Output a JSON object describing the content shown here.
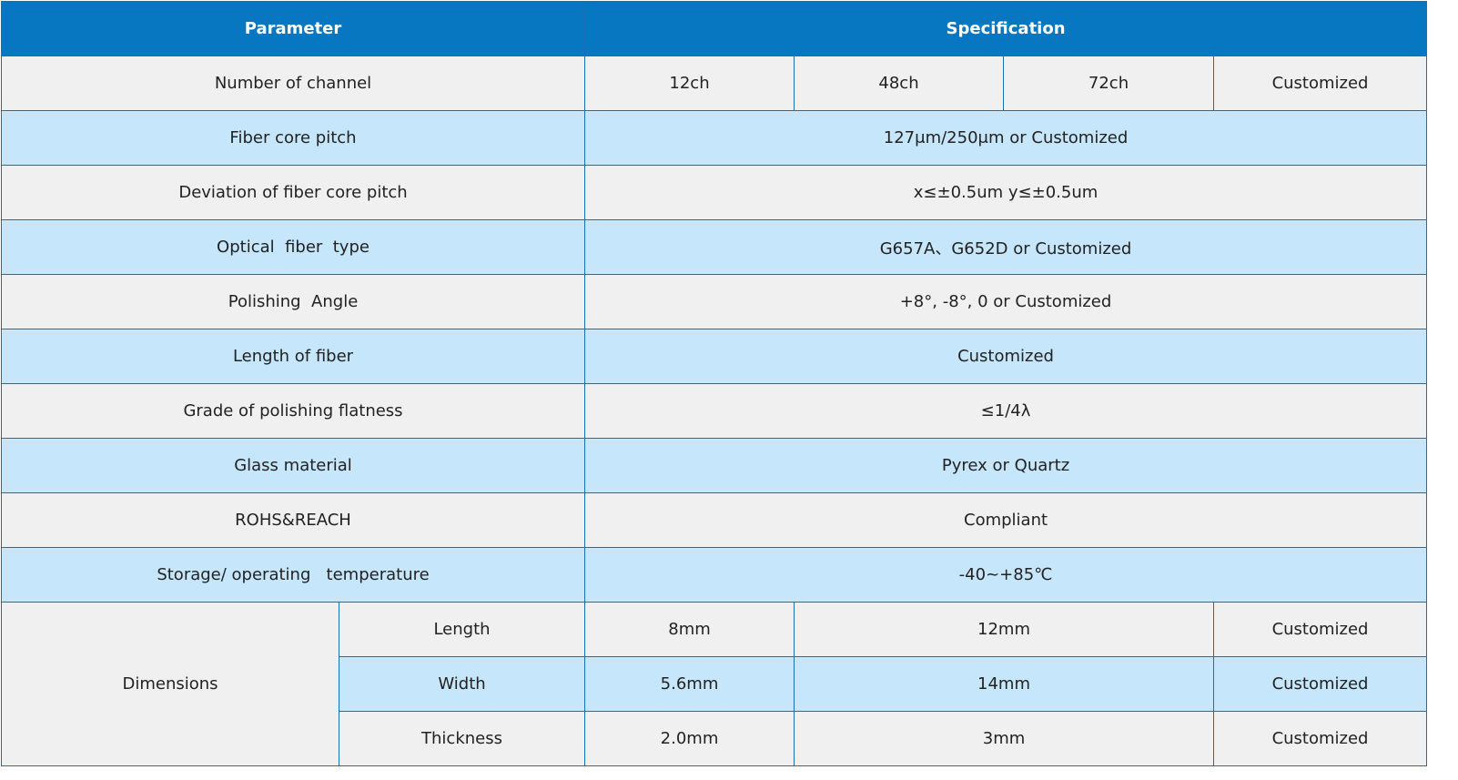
{
  "header": {
    "parameter": "Parameter",
    "specification": "Specification"
  },
  "rows": [
    {
      "param": "Number of channel",
      "values": [
        "12ch",
        "48ch",
        "72ch",
        "Customized"
      ]
    },
    {
      "param": "Fiber core pitch",
      "value": "127μm/250μm or Customized"
    },
    {
      "param": "Deviation of fiber core pitch",
      "value": "x≤±0.5um y≤±0.5um"
    },
    {
      "param": "Optical  fiber  type",
      "value": "G657A、G652D or Customized"
    },
    {
      "param": "Polishing  Angle",
      "value": "+8°, -8°, 0 or Customized"
    },
    {
      "param": "Length of fiber",
      "value": "Customized"
    },
    {
      "param": "Grade of polishing flatness",
      "value": "≤1/4λ"
    },
    {
      "param": "Glass material",
      "value": "Pyrex or Quartz"
    },
    {
      "param": "ROHS&REACH",
      "value": "Compliant"
    },
    {
      "param": "Storage/ operating   temperature",
      "value": "-40~+85℃"
    }
  ],
  "dimensions": {
    "label": "Dimensions",
    "items": [
      {
        "name": "Length",
        "values": [
          "8mm",
          "12mm",
          "Customized"
        ]
      },
      {
        "name": "Width",
        "values": [
          "5.6mm",
          "14mm",
          "Customized"
        ]
      },
      {
        "name": "Thickness",
        "values": [
          "2.0mm",
          "3mm",
          "Customized"
        ]
      }
    ]
  },
  "colors": {
    "header_bg": "#0777c2",
    "row_gray": "#f0f0f0",
    "row_blue": "#c6e6fb",
    "border": "#1a6fb0"
  }
}
